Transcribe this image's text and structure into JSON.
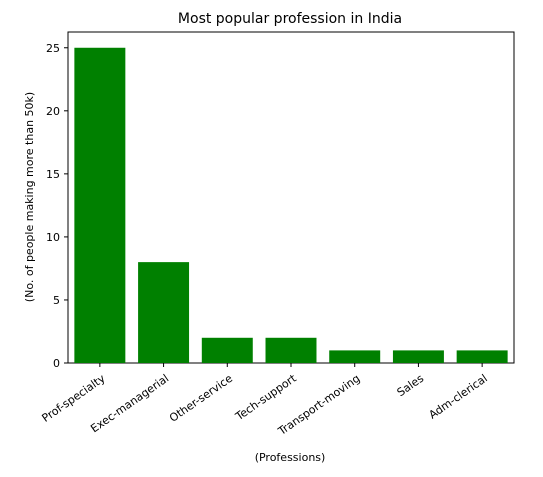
{
  "chart_data": {
    "type": "bar",
    "title": "Most popular profession in India",
    "xlabel": "(Professions)",
    "ylabel": "(No. of people making more than 50k)",
    "categories": [
      "Prof-specialty",
      "Exec-managerial",
      "Other-service",
      "Tech-support",
      "Transport-moving",
      "Sales",
      "Adm-clerical"
    ],
    "values": [
      25,
      8,
      2,
      2,
      1,
      1,
      1
    ],
    "ylim": [
      0,
      26.25
    ],
    "yticks": [
      0,
      5,
      10,
      15,
      20,
      25
    ],
    "grid": false,
    "colors": {
      "bar": "#008000",
      "axis": "#000000",
      "background": "#ffffff"
    }
  }
}
